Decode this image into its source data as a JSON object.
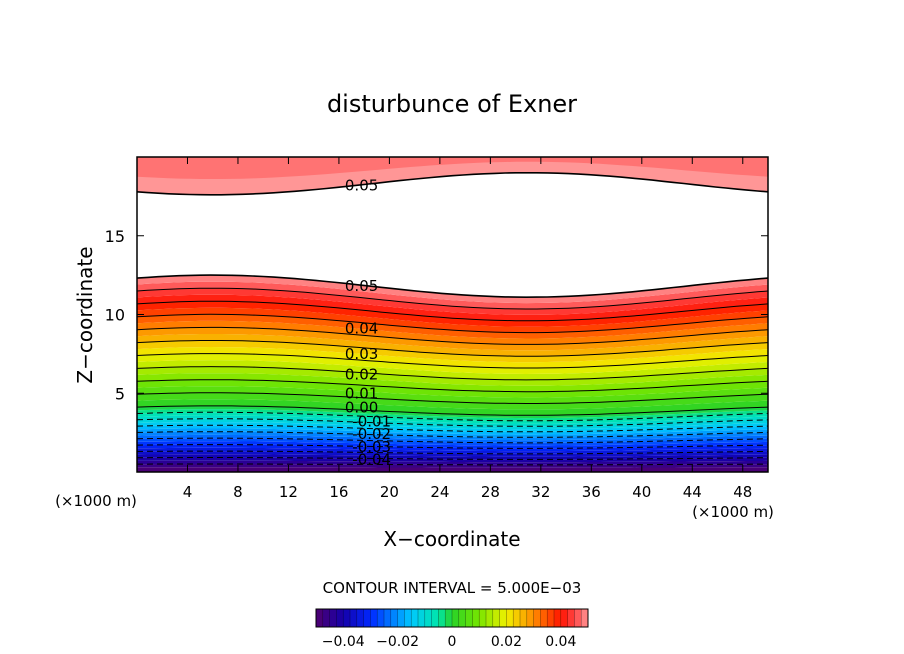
{
  "chart_data": {
    "type": "contour",
    "title": "disturbunce of Exner",
    "xlabel": "X−coordinate",
    "ylabel": "Z−coordinate",
    "x_unit_left": "(×1000 m)",
    "x_unit_right": "(×1000 m)",
    "xlim": [
      0,
      50
    ],
    "ylim": [
      0,
      20
    ],
    "xticks": [
      4,
      8,
      12,
      16,
      20,
      24,
      28,
      32,
      36,
      40,
      44,
      48
    ],
    "xtick_labels": [
      "4",
      "8",
      "12",
      "16",
      "20",
      "24",
      "28",
      "32",
      "36",
      "40",
      "44",
      "48"
    ],
    "yticks": [
      5,
      10,
      15
    ],
    "ytick_labels": [
      "5",
      "10",
      "15"
    ],
    "contour_interval_label": "CONTOUR INTERVAL = 5.000E−03",
    "contour_interval": 0.005,
    "contour_labels": [
      {
        "text": "0.05",
        "x": 17.8,
        "z": 18.2
      },
      {
        "text": "0.05",
        "x": 17.8,
        "z": 11.8
      },
      {
        "text": "0.04",
        "x": 17.8,
        "z": 9.1
      },
      {
        "text": "0.03",
        "x": 17.8,
        "z": 7.5
      },
      {
        "text": "0.02",
        "x": 17.8,
        "z": 6.2
      },
      {
        "text": "0.01",
        "x": 17.8,
        "z": 5.0
      },
      {
        "text": "0.00",
        "x": 17.8,
        "z": 4.1
      },
      {
        "text": "-0.01",
        "x": 18.6,
        "z": 3.2
      },
      {
        "text": "-0.02",
        "x": 18.6,
        "z": 2.4
      },
      {
        "text": "-0.03",
        "x": 18.6,
        "z": 1.6
      },
      {
        "text": "-0.04",
        "x": 18.6,
        "z": 0.8
      }
    ],
    "field_profile": {
      "description_of_levels": "vertical profile at x=0 and at trough x=31",
      "z_max_contour_0_05_upper": {
        "edge": 17.6,
        "trough": 19.0
      },
      "z_max_contour_0_05_lower": {
        "edge": 12.5,
        "trough": 11.1
      },
      "z_contour_0_00": {
        "edge": 4.2,
        "trough": 3.6
      },
      "z_contour_minus_0_05": {
        "edge": 0.1,
        "trough": 0.1
      }
    },
    "colorbar": {
      "min": -0.05,
      "max": 0.05,
      "tick_values": [
        -0.04,
        -0.02,
        0,
        0.02,
        0.04
      ],
      "tick_labels": [
        "−0.04",
        "−0.02",
        "0",
        "0.02",
        "0.04"
      ]
    }
  }
}
